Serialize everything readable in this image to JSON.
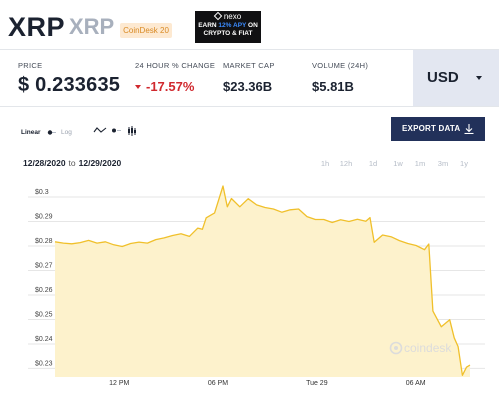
{
  "asset": {
    "symbol": "XRP",
    "name": "XRP",
    "badge": "CoinDesk 20"
  },
  "ad": {
    "brand": "nexo",
    "line1": "EARN ",
    "line1_hl": "12% APY",
    "line1_end": " ON",
    "line2": "CRYPTO & FIAT"
  },
  "stats": {
    "price_label": "PRICE",
    "price_value": "$ 0.233635",
    "change_label": "24 HOUR % CHANGE",
    "change_value": "-17.57%",
    "mcap_label": "MARKET CAP",
    "mcap_value": "$23.36B",
    "vol_label": "VOLUME (24H)",
    "vol_value": "$5.81B"
  },
  "currency": {
    "selected": "USD"
  },
  "controls": {
    "linear_label": "Linear",
    "log_label": "Log",
    "export_label": "EXPORT DATA"
  },
  "range": {
    "from": "12/28/2020",
    "to_word": "to",
    "to": "12/29/2020"
  },
  "timeframes": [
    "1h",
    "12h",
    "1d",
    "1w",
    "1m",
    "3m",
    "1y"
  ],
  "active_timeframe": "1d",
  "watermark": "coindesk",
  "colors": {
    "accent_line": "#f0c02b",
    "area_fill": "#fdf2cc",
    "down": "#d0282e",
    "export_bg": "#22315a"
  },
  "chart_data": {
    "type": "area",
    "yticks": [
      "$0.3",
      "$0.29",
      "$0.28",
      "$0.27",
      "$0.26",
      "$0.25",
      "$0.24",
      "$0.23"
    ],
    "ylim": [
      0.2265,
      0.3045
    ],
    "xticks": [
      {
        "label": "12 PM",
        "x": 3.9
      },
      {
        "label": "06 PM",
        "x": 9.9
      },
      {
        "label": "Tue 29",
        "x": 15.9
      },
      {
        "label": "06 AM",
        "x": 21.9
      }
    ],
    "xlim": [
      0,
      25.2
    ],
    "x_unit": "hours from 12/28/2020 08:00",
    "points": [
      [
        0.0,
        0.2817
      ],
      [
        0.51,
        0.2812
      ],
      [
        1.02,
        0.2809
      ],
      [
        1.53,
        0.2814
      ],
      [
        2.04,
        0.2823
      ],
      [
        2.55,
        0.2812
      ],
      [
        3.06,
        0.2817
      ],
      [
        3.57,
        0.2805
      ],
      [
        4.08,
        0.2798
      ],
      [
        4.59,
        0.281
      ],
      [
        5.1,
        0.2816
      ],
      [
        5.61,
        0.2812
      ],
      [
        6.12,
        0.2826
      ],
      [
        6.63,
        0.2833
      ],
      [
        7.14,
        0.2843
      ],
      [
        7.65,
        0.285
      ],
      [
        8.16,
        0.2839
      ],
      [
        8.67,
        0.2873
      ],
      [
        8.95,
        0.2868
      ],
      [
        9.18,
        0.2915
      ],
      [
        9.69,
        0.2935
      ],
      [
        10.2,
        0.3045
      ],
      [
        10.46,
        0.296
      ],
      [
        10.71,
        0.2994
      ],
      [
        11.22,
        0.296
      ],
      [
        11.73,
        0.2993
      ],
      [
        12.24,
        0.2968
      ],
      [
        12.75,
        0.2957
      ],
      [
        13.26,
        0.2951
      ],
      [
        13.77,
        0.2938
      ],
      [
        14.28,
        0.2948
      ],
      [
        14.79,
        0.2951
      ],
      [
        15.3,
        0.292
      ],
      [
        15.81,
        0.2908
      ],
      [
        16.32,
        0.2908
      ],
      [
        16.83,
        0.2896
      ],
      [
        17.34,
        0.2907
      ],
      [
        17.85,
        0.29
      ],
      [
        18.36,
        0.2909
      ],
      [
        18.87,
        0.2901
      ],
      [
        19.13,
        0.2916
      ],
      [
        19.38,
        0.2815
      ],
      [
        19.89,
        0.2845
      ],
      [
        20.4,
        0.2838
      ],
      [
        20.91,
        0.2822
      ],
      [
        21.42,
        0.281
      ],
      [
        21.93,
        0.2802
      ],
      [
        22.44,
        0.2785
      ],
      [
        22.7,
        0.2808
      ],
      [
        22.95,
        0.2534
      ],
      [
        23.46,
        0.247
      ],
      [
        23.97,
        0.2499
      ],
      [
        24.24,
        0.2425
      ],
      [
        24.48,
        0.2389
      ],
      [
        24.74,
        0.2272
      ],
      [
        24.99,
        0.2305
      ],
      [
        25.2,
        0.2314
      ]
    ]
  }
}
